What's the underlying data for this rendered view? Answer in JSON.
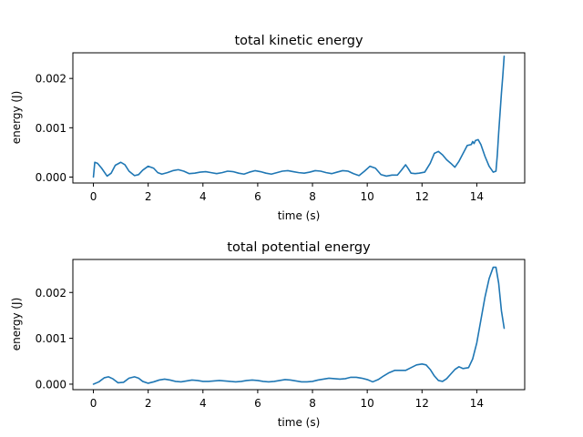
{
  "colors": {
    "series": "#1f77b4",
    "axes": "#000000",
    "background": "#ffffff"
  },
  "chart_data": [
    {
      "type": "line",
      "title": "total kinetic energy",
      "xlabel": "time (s)",
      "ylabel": "energy (J)",
      "xlim": [
        -0.75,
        15.75
      ],
      "ylim": [
        -0.00012,
        0.00252
      ],
      "xticks": [
        0,
        2,
        4,
        6,
        8,
        10,
        12,
        14
      ],
      "xtick_labels": [
        "0",
        "2",
        "4",
        "6",
        "8",
        "10",
        "12",
        "14"
      ],
      "yticks": [
        0,
        0.001,
        0.002
      ],
      "ytick_labels": [
        "0.000",
        "0.001",
        "0.002"
      ],
      "grid": false,
      "series": [
        {
          "x": [
            0,
            0.05,
            0.15,
            0.3,
            0.5,
            0.65,
            0.8,
            1.0,
            1.15,
            1.3,
            1.5,
            1.65,
            1.8,
            2.0,
            2.2,
            2.35,
            2.5,
            2.7,
            2.9,
            3.1,
            3.3,
            3.5,
            3.7,
            3.9,
            4.1,
            4.3,
            4.5,
            4.7,
            4.9,
            5.1,
            5.3,
            5.5,
            5.7,
            5.9,
            6.1,
            6.3,
            6.5,
            6.7,
            6.9,
            7.1,
            7.3,
            7.5,
            7.7,
            7.9,
            8.1,
            8.3,
            8.5,
            8.7,
            8.9,
            9.1,
            9.3,
            9.5,
            9.7,
            9.9,
            10.1,
            10.3,
            10.5,
            10.7,
            10.9,
            11.1,
            11.25,
            11.4,
            11.5,
            11.6,
            11.75,
            11.9,
            12.1,
            12.3,
            12.45,
            12.6,
            12.75,
            12.9,
            13.05,
            13.2,
            13.35,
            13.5,
            13.65,
            13.8,
            13.85,
            13.9,
            13.95,
            14.05,
            14.15,
            14.3,
            14.45,
            14.6,
            14.7,
            14.75,
            14.8,
            14.9,
            14.95,
            15.0
          ],
          "y": [
            0.0,
            0.0003,
            0.00028,
            0.00018,
            2e-05,
            8e-05,
            0.00024,
            0.0003,
            0.00025,
            0.00012,
            3e-05,
            5e-05,
            0.00014,
            0.00022,
            0.00018,
            9e-05,
            6e-05,
            9e-05,
            0.00013,
            0.00015,
            0.00012,
            7e-05,
            8e-05,
            0.0001,
            0.00011,
            9e-05,
            7e-05,
            9e-05,
            0.00012,
            0.00011,
            8e-05,
            6e-05,
            0.0001,
            0.00013,
            0.00011,
            8e-05,
            6e-05,
            9e-05,
            0.00012,
            0.00013,
            0.00011,
            9e-05,
            8e-05,
            0.0001,
            0.00013,
            0.00012,
            9e-05,
            7e-05,
            0.0001,
            0.00013,
            0.00012,
            7e-05,
            3e-05,
            0.00012,
            0.00022,
            0.00018,
            5e-05,
            2e-05,
            4e-05,
            4e-05,
            0.00014,
            0.00025,
            0.00017,
            8e-05,
            7e-05,
            8e-05,
            0.0001,
            0.00028,
            0.00048,
            0.00052,
            0.00045,
            0.00035,
            0.00028,
            0.0002,
            0.00032,
            0.00048,
            0.00064,
            0.00066,
            0.00072,
            0.00068,
            0.00074,
            0.00076,
            0.00066,
            0.00042,
            0.00022,
            0.0001,
            0.00012,
            0.00045,
            0.0009,
            0.0017,
            0.00205,
            0.00245
          ]
        }
      ]
    },
    {
      "type": "line",
      "title": "total potential energy",
      "xlabel": "time (s)",
      "ylabel": "energy (J)",
      "xlim": [
        -0.75,
        15.75
      ],
      "ylim": [
        -0.00012,
        0.00272
      ],
      "xticks": [
        0,
        2,
        4,
        6,
        8,
        10,
        12,
        14
      ],
      "xtick_labels": [
        "0",
        "2",
        "4",
        "6",
        "8",
        "10",
        "12",
        "14"
      ],
      "yticks": [
        0,
        0.001,
        0.002
      ],
      "ytick_labels": [
        "0.000",
        "0.001",
        "0.002"
      ],
      "grid": false,
      "series": [
        {
          "x": [
            0,
            0.2,
            0.4,
            0.55,
            0.7,
            0.9,
            1.1,
            1.3,
            1.5,
            1.65,
            1.8,
            2.0,
            2.2,
            2.4,
            2.6,
            2.8,
            3.0,
            3.2,
            3.4,
            3.6,
            3.8,
            4.0,
            4.2,
            4.4,
            4.6,
            4.8,
            5.0,
            5.2,
            5.4,
            5.6,
            5.8,
            6.0,
            6.2,
            6.4,
            6.6,
            6.8,
            7.0,
            7.2,
            7.4,
            7.6,
            7.8,
            8.0,
            8.2,
            8.4,
            8.6,
            8.8,
            9.0,
            9.2,
            9.4,
            9.6,
            9.8,
            10.0,
            10.2,
            10.4,
            10.6,
            10.8,
            11.0,
            11.2,
            11.4,
            11.6,
            11.8,
            12.0,
            12.15,
            12.3,
            12.45,
            12.6,
            12.75,
            12.9,
            13.05,
            13.2,
            13.35,
            13.5,
            13.7,
            13.85,
            14.0,
            14.15,
            14.3,
            14.45,
            14.6,
            14.7,
            14.8,
            14.9,
            15.0
          ],
          "y": [
            0.0,
            5e-05,
            0.00014,
            0.00016,
            0.00012,
            3e-05,
            4e-05,
            0.00013,
            0.00016,
            0.00013,
            6e-05,
            2e-05,
            5e-05,
            9e-05,
            0.00011,
            9e-05,
            6e-05,
            5e-05,
            7e-05,
            9e-05,
            8e-05,
            6e-05,
            6e-05,
            7e-05,
            8e-05,
            7e-05,
            6e-05,
            5e-05,
            6e-05,
            8e-05,
            9e-05,
            8e-05,
            6e-05,
            5e-05,
            6e-05,
            8e-05,
            0.0001,
            9e-05,
            7e-05,
            5e-05,
            5e-05,
            6e-05,
            9e-05,
            0.00011,
            0.00013,
            0.00012,
            0.00011,
            0.00012,
            0.00015,
            0.00015,
            0.00013,
            0.0001,
            5e-05,
            0.0001,
            0.00018,
            0.00025,
            0.0003,
            0.0003,
            0.0003,
            0.00036,
            0.00042,
            0.00044,
            0.00042,
            0.00032,
            0.00018,
            8e-05,
            6e-05,
            0.00012,
            0.00022,
            0.00032,
            0.00038,
            0.00034,
            0.00036,
            0.00055,
            0.0009,
            0.0014,
            0.0019,
            0.0023,
            0.00255,
            0.00255,
            0.0022,
            0.0016,
            0.00122
          ]
        }
      ]
    }
  ]
}
